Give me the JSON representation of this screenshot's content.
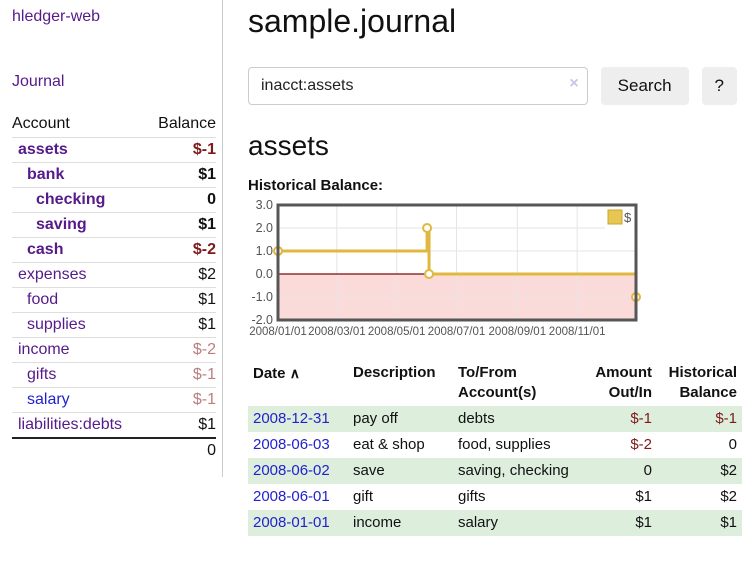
{
  "app": {
    "brand": "hledger-web",
    "nav_journal": "Journal"
  },
  "sidebar": {
    "headers": {
      "account": "Account",
      "balance": "Balance"
    },
    "accounts": [
      {
        "name": "assets",
        "balance": "$-1",
        "level": 1,
        "bold": true,
        "balance_tone": "neg-strong",
        "name_tone": "purple"
      },
      {
        "name": "bank",
        "balance": "$1",
        "level": 2,
        "bold": true,
        "balance_tone": "normal",
        "name_tone": "purple"
      },
      {
        "name": "checking",
        "balance": "0",
        "level": 3,
        "bold": true,
        "balance_tone": "normal",
        "name_tone": "purple"
      },
      {
        "name": "saving",
        "balance": "$1",
        "level": 3,
        "bold": true,
        "balance_tone": "normal",
        "name_tone": "purple"
      },
      {
        "name": "cash",
        "balance": "$-2",
        "level": 2,
        "bold": true,
        "balance_tone": "neg-strong",
        "name_tone": "purple"
      },
      {
        "name": "expenses",
        "balance": "$2",
        "level": 1,
        "bold": false,
        "balance_tone": "normal",
        "name_tone": "purple"
      },
      {
        "name": "food",
        "balance": "$1",
        "level": 2,
        "bold": false,
        "balance_tone": "normal",
        "name_tone": "purple"
      },
      {
        "name": "supplies",
        "balance": "$1",
        "level": 2,
        "bold": false,
        "balance_tone": "normal",
        "name_tone": "purple"
      },
      {
        "name": "income",
        "balance": "$-2",
        "level": 1,
        "bold": false,
        "balance_tone": "neg-soft",
        "name_tone": "purple"
      },
      {
        "name": "gifts",
        "balance": "$-1",
        "level": 2,
        "bold": false,
        "balance_tone": "neg-soft",
        "name_tone": "purple"
      },
      {
        "name": "salary",
        "balance": "$-1",
        "level": 2,
        "bold": false,
        "balance_tone": "neg-soft",
        "name_tone": "blue"
      },
      {
        "name": "liabilities:debts",
        "balance": "$1",
        "level": 1,
        "bold": false,
        "balance_tone": "normal",
        "name_tone": "purple"
      }
    ],
    "total": "0"
  },
  "header": {
    "title": "sample.journal"
  },
  "search": {
    "value": "inacct:assets",
    "clear_icon": "×",
    "button_label": "Search",
    "help_label": "?"
  },
  "account_page": {
    "heading": "assets",
    "chart_label": "Historical Balance:"
  },
  "chart_data": {
    "type": "line",
    "title": "Historical Balance",
    "style": "step-after",
    "series": [
      {
        "name": "$",
        "color": "#e0b83f",
        "points": [
          [
            "2008-01-01",
            1
          ],
          [
            "2008-06-01",
            2
          ],
          [
            "2008-06-03",
            0
          ],
          [
            "2008-12-31",
            -1
          ]
        ]
      }
    ],
    "x_range": [
      "2008-01-01",
      "2008-12-31"
    ],
    "x_tick_labels": [
      "2008/01/01",
      "2008/03/01",
      "2008/05/01",
      "2008/07/01",
      "2008/09/01",
      "2008/11/01"
    ],
    "y_tick_labels": [
      "3.0",
      "2.0",
      "1.0",
      "0.0",
      "-1.0",
      "-2.0"
    ],
    "y_ticks": [
      3,
      2,
      1,
      0,
      -1,
      -2
    ],
    "ylim": [
      -2,
      3
    ],
    "grid": true,
    "legend": {
      "label": "$",
      "position": "top-right"
    },
    "negative_region_color": "#fbdada",
    "zero_line_color": "#7c0a0a",
    "border_color": "#565656",
    "grid_color": "#e5e5e5",
    "tick_text_color": "#545454"
  },
  "register": {
    "headers": {
      "date": "Date",
      "sort_icon": "∧",
      "description": "Description",
      "accounts_line1": "To/From",
      "accounts_line2": "Account(s)",
      "amount_line1": "Amount",
      "amount_line2": "Out/In",
      "balance_line1": "Historical",
      "balance_line2": "Balance"
    },
    "rows": [
      {
        "date": "2008-12-31",
        "description": "pay off",
        "accounts": "debts",
        "amount": "$-1",
        "amount_tone": "neg-strong",
        "balance": "$-1",
        "balance_tone": "neg-strong",
        "striped": true
      },
      {
        "date": "2008-06-03",
        "description": "eat & shop",
        "accounts": "food, supplies",
        "amount": "$-2",
        "amount_tone": "neg-strong",
        "balance": "0",
        "balance_tone": "normal",
        "striped": false
      },
      {
        "date": "2008-06-02",
        "description": "save",
        "accounts": "saving, checking",
        "amount": "0",
        "amount_tone": "normal",
        "balance": "$2",
        "balance_tone": "normal",
        "striped": true
      },
      {
        "date": "2008-06-01",
        "description": "gift",
        "accounts": "gifts",
        "amount": "$1",
        "amount_tone": "normal",
        "balance": "$2",
        "balance_tone": "normal",
        "striped": false
      },
      {
        "date": "2008-01-01",
        "description": "income",
        "accounts": "salary",
        "amount": "$1",
        "amount_tone": "normal",
        "balance": "$1",
        "balance_tone": "normal",
        "striped": true
      }
    ]
  },
  "colors": {
    "link_purple": "#551a8b",
    "link_blue": "#2222cc",
    "negative_strong": "#7d1a1a",
    "negative_soft": "#b97f7f",
    "row_stripe_green": "#ddeedd",
    "series_gold": "#e0b83f"
  }
}
